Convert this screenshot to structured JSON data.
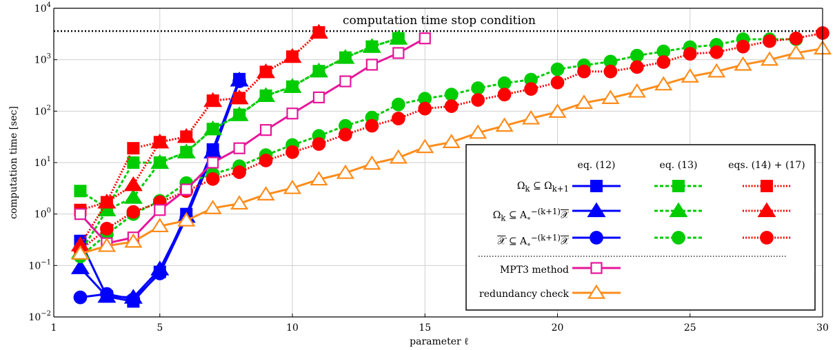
{
  "chart_data": {
    "type": "line",
    "xlabel": "parameter ℓ",
    "ylabel": "computation time [sec]",
    "yscale": "log",
    "xlim": [
      1,
      30
    ],
    "ylim": [
      0.01,
      10000
    ],
    "grid": true,
    "x_ticks": [
      1,
      5,
      10,
      15,
      20,
      25,
      30
    ],
    "y_ticks": [
      {
        "value": 0.01,
        "base": "10",
        "exp": "−2"
      },
      {
        "value": 0.1,
        "base": "10",
        "exp": "−1"
      },
      {
        "value": 1,
        "base": "10",
        "exp": "0"
      },
      {
        "value": 10,
        "base": "10",
        "exp": "1"
      },
      {
        "value": 100,
        "base": "10",
        "exp": "2"
      },
      {
        "value": 1000,
        "base": "10",
        "exp": "3"
      },
      {
        "value": 10000,
        "base": "10",
        "exp": "4"
      }
    ],
    "stop_condition": {
      "value": 3600,
      "label": "computation time stop condition"
    },
    "legend": {
      "position": "bottom-right",
      "columns": [
        "eq. (12)",
        "eq. (13)",
        "eqs. (14) + (17)"
      ],
      "row_labels": [
        {
          "html": "Ω<sub>k</sub> ⊆ Ω<sub>k+1</sub>"
        },
        {
          "html": "Ω<sub>k</sub> ⊆ A<sub>∘</sub><sup>−(k+1)</sup><span style=\"text-decoration:overline\">𝒳</span>"
        },
        {
          "html": "<span style=\"text-decoration:overline\">𝒳</span> ⊆ A<sub>∘</sub><sup>−(k+1)</sup><span style=\"text-decoration:overline\">𝒳</span>"
        }
      ],
      "extra_labels": [
        "MPT3 method",
        "redundancy check"
      ]
    },
    "colors": {
      "blue": "#0000ff",
      "green": "#00cc00",
      "red": "#ff0000",
      "magenta": "#e6169a",
      "orange": "#ff8c1a"
    },
    "series": [
      {
        "id": "blue_square",
        "color": "#0000ff",
        "marker": "square",
        "line": "solid",
        "x": [
          2,
          3,
          4,
          5,
          6,
          7,
          8
        ],
        "y": [
          0.3,
          0.025,
          0.02,
          0.075,
          1.0,
          18,
          420
        ]
      },
      {
        "id": "blue_triangle",
        "color": "#0000ff",
        "marker": "triangle",
        "line": "solid",
        "x": [
          2,
          3,
          4,
          5,
          6,
          7,
          8
        ],
        "y": [
          0.09,
          0.025,
          0.024,
          0.085,
          0.9,
          16,
          400
        ]
      },
      {
        "id": "blue_circle",
        "color": "#0000ff",
        "marker": "circle",
        "line": "solid",
        "x": [
          2,
          3,
          4,
          5,
          6,
          7,
          8
        ],
        "y": [
          0.024,
          0.028,
          0.022,
          0.07,
          0.85,
          15,
          380
        ]
      },
      {
        "id": "green_square",
        "color": "#00cc00",
        "marker": "square",
        "line": "dashed",
        "x": [
          2,
          3,
          4,
          5,
          6,
          7,
          8,
          9,
          10,
          11,
          12,
          13,
          14
        ],
        "y": [
          2.8,
          1.3,
          10,
          10,
          16,
          45,
          85,
          200,
          300,
          600,
          1100,
          1800,
          2600
        ]
      },
      {
        "id": "green_triangle",
        "color": "#00cc00",
        "marker": "triangle",
        "line": "dashed",
        "x": [
          2,
          3,
          4,
          5,
          6,
          7,
          8,
          9,
          10,
          11,
          12,
          13,
          14
        ],
        "y": [
          0.18,
          1.2,
          2.1,
          10,
          16,
          45,
          85,
          200,
          300,
          600,
          1100,
          1800,
          2600
        ]
      },
      {
        "id": "green_circle",
        "color": "#00cc00",
        "marker": "circle",
        "line": "dashed",
        "x": [
          2,
          3,
          4,
          5,
          6,
          7,
          8,
          9,
          10,
          11,
          12,
          13,
          14,
          15,
          16,
          17,
          18,
          19,
          20,
          21,
          22,
          23,
          24,
          25,
          26,
          27,
          28,
          29
        ],
        "y": [
          0.15,
          0.4,
          1.0,
          1.8,
          4.0,
          6.0,
          8.5,
          14,
          22,
          33,
          52,
          75,
          135,
          175,
          210,
          280,
          350,
          410,
          650,
          780,
          920,
          1200,
          1450,
          1750,
          1950,
          2500,
          2500,
          2500
        ]
      },
      {
        "id": "red_square",
        "color": "#ff0000",
        "marker": "square",
        "line": "dotted",
        "x": [
          2,
          3,
          4,
          5,
          6,
          7,
          8,
          9,
          10,
          11
        ],
        "y": [
          1.2,
          1.7,
          19,
          25,
          32,
          160,
          180,
          580,
          1150,
          3400
        ]
      },
      {
        "id": "red_triangle",
        "color": "#ff0000",
        "marker": "triangle",
        "line": "dotted",
        "x": [
          2,
          3,
          4,
          5,
          6,
          7,
          8,
          9,
          10,
          11
        ],
        "y": [
          0.25,
          1.7,
          3.7,
          25,
          32,
          160,
          180,
          580,
          1150,
          3400
        ]
      },
      {
        "id": "red_circle",
        "color": "#ff0000",
        "marker": "circle",
        "line": "dotted",
        "x": [
          2,
          3,
          4,
          5,
          6,
          7,
          8,
          9,
          10,
          11,
          12,
          13,
          14,
          15,
          16,
          17,
          18,
          19,
          20,
          21,
          22,
          23,
          24,
          25,
          26,
          27,
          28,
          29,
          30
        ],
        "y": [
          0.2,
          0.52,
          1.1,
          1.7,
          2.8,
          4.8,
          6.5,
          11,
          16,
          23,
          35,
          52,
          72,
          112,
          125,
          165,
          210,
          270,
          360,
          590,
          590,
          720,
          900,
          1300,
          1400,
          1800,
          2300,
          2600,
          3300
        ]
      },
      {
        "id": "mpt3",
        "color": "#e6169a",
        "marker": "open-square",
        "line": "solid",
        "x": [
          2,
          3,
          4,
          5,
          6,
          7,
          8,
          9,
          10,
          11,
          12,
          13,
          14,
          15
        ],
        "y": [
          1.0,
          0.27,
          0.35,
          1.2,
          3.0,
          10,
          19,
          43,
          90,
          185,
          380,
          800,
          1350,
          2600
        ]
      },
      {
        "id": "redundancy",
        "color": "#ff8c1a",
        "marker": "open-triangle",
        "line": "solid",
        "x": [
          2,
          3,
          4,
          5,
          6,
          7,
          8,
          9,
          10,
          11,
          12,
          13,
          14,
          15,
          16,
          17,
          18,
          19,
          20,
          21,
          22,
          23,
          24,
          25,
          26,
          27,
          28,
          29,
          30
        ],
        "y": [
          0.17,
          0.24,
          0.29,
          0.58,
          0.75,
          1.3,
          1.6,
          2.4,
          3.2,
          4.7,
          6.3,
          9.5,
          12.5,
          20,
          25,
          38,
          52,
          72,
          97,
          145,
          180,
          240,
          330,
          470,
          590,
          800,
          1000,
          1350,
          1650
        ]
      }
    ]
  }
}
